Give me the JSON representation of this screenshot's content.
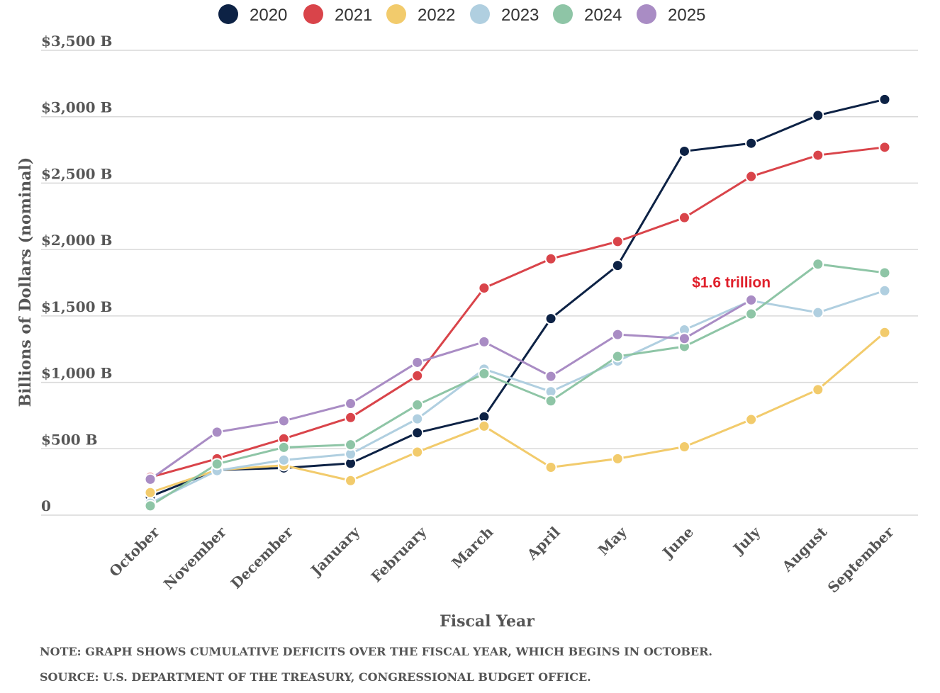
{
  "chart_data": {
    "type": "line",
    "categories": [
      "October",
      "November",
      "December",
      "January",
      "February",
      "March",
      "April",
      "May",
      "June",
      "July",
      "August",
      "September"
    ],
    "series": [
      {
        "name": "2020",
        "color": "#0d2245",
        "values": [
          140,
          340,
          355,
          390,
          620,
          740,
          1480,
          1880,
          2740,
          2800,
          3010,
          3130
        ]
      },
      {
        "name": "2021",
        "color": "#d9444a",
        "values": [
          285,
          425,
          575,
          735,
          1050,
          1710,
          1930,
          2060,
          2240,
          2550,
          2710,
          2770
        ]
      },
      {
        "name": "2022",
        "color": "#f2cb6c",
        "values": [
          170,
          340,
          375,
          260,
          475,
          670,
          360,
          425,
          515,
          720,
          945,
          1375
        ]
      },
      {
        "name": "2023",
        "color": "#b0cfe0",
        "values": [
          90,
          335,
          415,
          460,
          725,
          1100,
          930,
          1160,
          1395,
          1615,
          1525,
          1690
        ]
      },
      {
        "name": "2024",
        "color": "#8ec5a6",
        "values": [
          70,
          385,
          510,
          530,
          830,
          1065,
          860,
          1195,
          1270,
          1515,
          1890,
          1825
        ]
      },
      {
        "name": "2025",
        "color": "#a98cc4",
        "values": [
          270,
          625,
          710,
          840,
          1150,
          1305,
          1045,
          1360,
          1330,
          1620,
          null,
          null
        ]
      }
    ],
    "ylim": [
      0,
      3500
    ],
    "yticks": [
      0,
      500,
      1000,
      1500,
      2000,
      2500,
      3000,
      3500
    ],
    "ytick_labels": [
      "0",
      "$500 B",
      "$1,000 B",
      "$1,500 B",
      "$2,000 B",
      "$2,500 B",
      "$3,000 B",
      "$3,500 B"
    ],
    "xlabel": "Fiscal Year",
    "ylabel": "Billions of Dollars (nominal)",
    "grid": "horizontal",
    "legend_position": "top-center",
    "annotation": {
      "text": "$1.6 trillion",
      "series": "2025",
      "category": "July",
      "color": "#e0202b"
    }
  },
  "footer": {
    "note": "NOTE: GRAPH SHOWS CUMULATIVE DEFICITS OVER THE FISCAL YEAR, WHICH BEGINS IN OCTOBER.",
    "source": "SOURCE: U.S. DEPARTMENT OF THE TREASURY, CONGRESSIONAL BUDGET OFFICE."
  }
}
